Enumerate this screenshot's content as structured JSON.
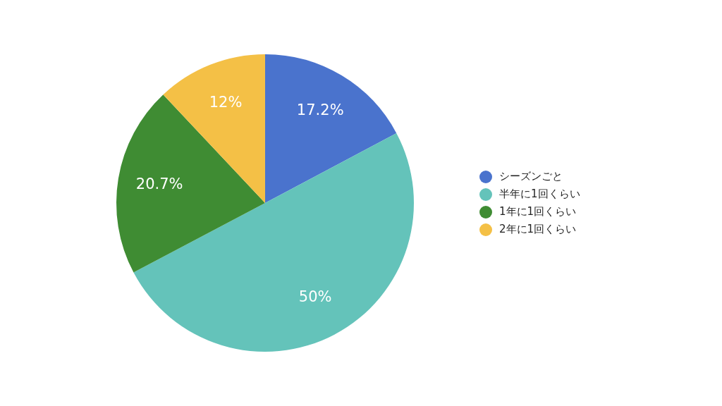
{
  "chart_data": {
    "type": "pie",
    "categories": [
      "シーズンごと",
      "半年に1回くらい",
      "1年に1回くらい",
      "2年に1回くらい"
    ],
    "values": [
      17.2,
      50,
      20.7,
      12
    ],
    "value_labels": [
      "17.2%",
      "50%",
      "20.7%",
      "12%"
    ],
    "colors": [
      "#4a73cd",
      "#64c3ba",
      "#3f8c33",
      "#f4c046"
    ],
    "data_labels": true,
    "legend": "right"
  }
}
